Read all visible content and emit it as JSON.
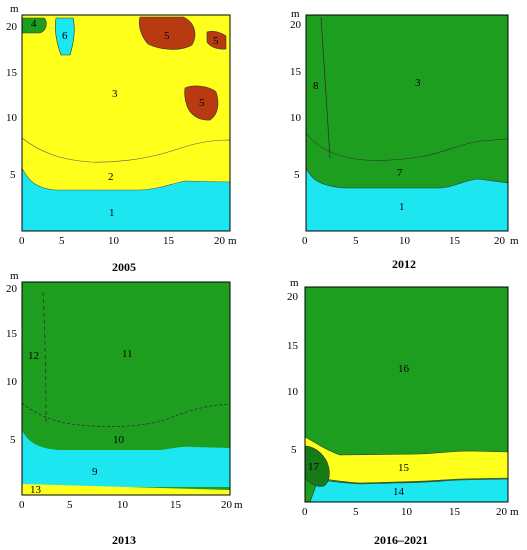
{
  "colors": {
    "yellow": "#ffff1c",
    "cyan": "#1ce6f0",
    "green": "#1e9e1e",
    "darkgreen": "#167a16",
    "red": "#b83a10"
  },
  "panels": [
    {
      "caption": "2005",
      "y_unit": "m",
      "x_unit": "m",
      "y_ticks": [
        "20",
        "15",
        "10",
        "5"
      ],
      "x_ticks": [
        "0",
        "5",
        "10",
        "15",
        "20"
      ],
      "zones": [
        "1",
        "2",
        "3",
        "4",
        "5",
        "5",
        "5",
        "6"
      ]
    },
    {
      "caption": "2012",
      "y_unit": "m",
      "x_unit": "m",
      "y_ticks": [
        "20",
        "15",
        "10",
        "5"
      ],
      "x_ticks": [
        "0",
        "5",
        "10",
        "15",
        "20"
      ],
      "zones": [
        "1",
        "7",
        "3",
        "8"
      ]
    },
    {
      "caption": "2013",
      "y_unit": "m",
      "x_unit": "m",
      "y_ticks": [
        "20",
        "15",
        "10",
        "5"
      ],
      "x_ticks": [
        "0",
        "5",
        "10",
        "15",
        "20"
      ],
      "zones": [
        "9",
        "10",
        "11",
        "12",
        "13"
      ]
    },
    {
      "caption": "2016–2021",
      "y_unit": "m",
      "x_unit": "m",
      "y_ticks": [
        "20",
        "15",
        "10",
        "5"
      ],
      "x_ticks": [
        "0",
        "5",
        "10",
        "15",
        "20"
      ],
      "zones": [
        "16",
        "15",
        "14",
        "17"
      ]
    }
  ]
}
